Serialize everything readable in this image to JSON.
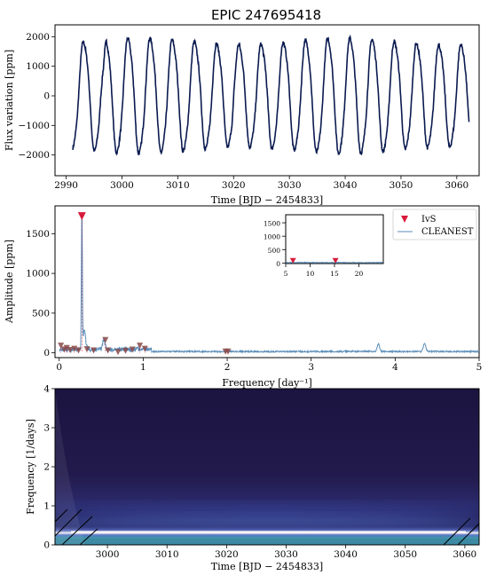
{
  "title": "EPIC 247695418",
  "chart_data": [
    {
      "type": "line",
      "panel": "light-curve",
      "title": "EPIC 247695418",
      "xlabel": "Time [BJD − 2454833]",
      "ylabel": "Flux variation [ppm]",
      "xlim": [
        2988,
        3064
      ],
      "ylim": [
        -2700,
        2400
      ],
      "xticks": [
        "2990",
        "3000",
        "3010",
        "3020",
        "3030",
        "3040",
        "3050",
        "3060"
      ],
      "yticks": [
        "−2000",
        "−1000",
        "0",
        "1000",
        "2000"
      ],
      "series": [
        {
          "color": "#0a1a4f",
          "t_start": 2991.2,
          "t_end": 3062.2,
          "period_days": 3.98,
          "amplitude_ppm": 1850,
          "max_ppm": 2150,
          "min_ppm": -2500
        }
      ]
    },
    {
      "type": "line",
      "panel": "periodogram",
      "xlabel": "Frequency [day⁻¹]",
      "ylabel": "Amplitude [ppm]",
      "xlim": [
        -0.05,
        5
      ],
      "ylim": [
        -60,
        1850
      ],
      "xticks": [
        "0",
        "1",
        "2",
        "3",
        "4",
        "5"
      ],
      "yticks": [
        "0",
        "500",
        "1000",
        "1500"
      ],
      "legend_position": "top-right",
      "series": [
        {
          "name": "CLEANEST",
          "color": "#5b8db8",
          "peaks": [
            {
              "x": 0.27,
              "y": 1750
            },
            {
              "x": 0.3,
              "y": 250
            },
            {
              "x": 0.53,
              "y": 120
            },
            {
              "x": 3.8,
              "y": 95
            },
            {
              "x": 4.35,
              "y": 100
            }
          ]
        },
        {
          "name": "IvS",
          "color": "#d81b3c",
          "marker": "triangle-down",
          "points": [
            {
              "x": 0.27,
              "y": 1720
            },
            {
              "x": 0.02,
              "y": 90
            },
            {
              "x": 0.06,
              "y": 40
            },
            {
              "x": 0.09,
              "y": 60
            },
            {
              "x": 0.13,
              "y": 35
            },
            {
              "x": 0.18,
              "y": 50
            },
            {
              "x": 0.23,
              "y": 30
            },
            {
              "x": 0.33,
              "y": 45
            },
            {
              "x": 0.41,
              "y": 30
            },
            {
              "x": 0.55,
              "y": 160
            },
            {
              "x": 0.58,
              "y": 30
            },
            {
              "x": 0.7,
              "y": 10
            },
            {
              "x": 0.79,
              "y": 25
            },
            {
              "x": 0.87,
              "y": 40
            },
            {
              "x": 0.96,
              "y": 90
            },
            {
              "x": 1.02,
              "y": 50
            },
            {
              "x": 1.98,
              "y": 15
            },
            {
              "x": 2.01,
              "y": 15
            }
          ]
        }
      ],
      "inset": {
        "xlim": [
          5,
          25
        ],
        "ylim": [
          -20,
          1800
        ],
        "xticks": [
          "5",
          "10",
          "15",
          "20"
        ],
        "yticks": [
          "0",
          "500",
          "1000",
          "1500"
        ],
        "ivs_points": [
          {
            "x": 6.5,
            "y": 20
          },
          {
            "x": 15.2,
            "y": 20
          }
        ]
      }
    },
    {
      "type": "heatmap",
      "panel": "wavelet",
      "xlabel": "Time [BJD − 2454833]",
      "ylabel": "Frequency [1/days]",
      "xlim": [
        2991.2,
        3062.4
      ],
      "ylim": [
        0,
        4
      ],
      "xticks": [
        "3000",
        "3010",
        "3020",
        "3030",
        "3040",
        "3050",
        "3060"
      ],
      "yticks": [
        "0",
        "1",
        "2",
        "3",
        "4"
      ],
      "ridge_frequency": 0.25,
      "colors": [
        "#1d1742",
        "#3a3a8a",
        "#e8e8ee"
      ]
    }
  ]
}
